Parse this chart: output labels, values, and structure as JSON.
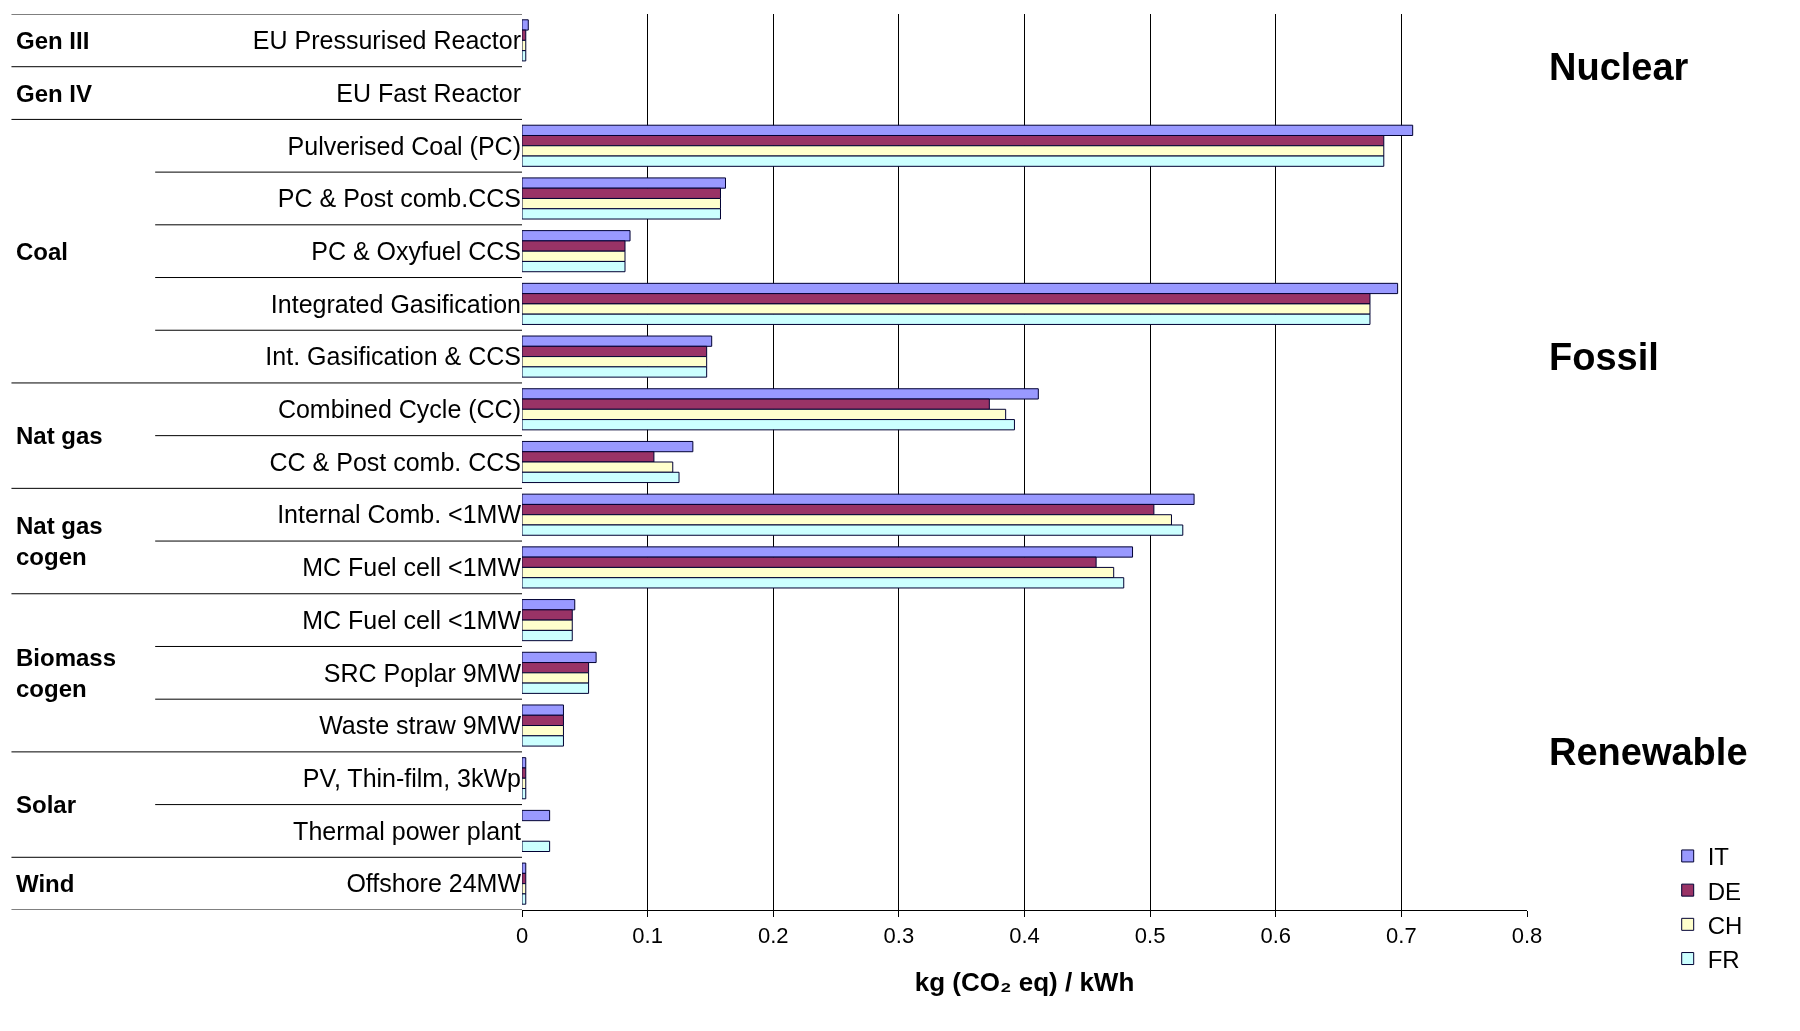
{
  "chart_data": {
    "type": "bar",
    "orientation": "horizontal",
    "xlabel": "kg (CO₂ eq) / kWh",
    "categories": [
      "EU Pressurised Reactor",
      "EU Fast Reactor",
      "Pulverised Coal (PC)",
      "PC & Post comb.CCS",
      "PC & Oxyfuel CCS",
      "Integrated Gasification",
      "Int. Gasification & CCS",
      "Combined Cycle (CC)",
      "CC & Post comb. CCS",
      "Internal Comb. <1MW",
      "MC Fuel cell <1MW",
      "MC Fuel cell <1MW",
      "SRC Poplar 9MW",
      "Waste straw 9MW",
      "PV, Thin-film, 3kWp",
      "Thermal power plant",
      "Offshore 24MW"
    ],
    "series": [
      {
        "name": "IT",
        "color": "#9999ff",
        "values": [
          0.005,
          null,
          0.709,
          0.162,
          0.086,
          0.697,
          0.151,
          0.411,
          0.136,
          0.535,
          0.486,
          0.042,
          0.059,
          0.033,
          0.003,
          0.022,
          0.003
        ]
      },
      {
        "name": "DE",
        "color": "#993366",
        "values": [
          0.003,
          null,
          0.686,
          0.158,
          0.082,
          0.675,
          0.147,
          0.372,
          0.105,
          0.503,
          0.457,
          0.04,
          0.053,
          0.033,
          0.003,
          null,
          0.003
        ]
      },
      {
        "name": "CH",
        "color": "#ffffcc",
        "values": [
          0.003,
          null,
          0.686,
          0.158,
          0.082,
          0.675,
          0.147,
          0.385,
          0.12,
          0.517,
          0.471,
          0.04,
          0.053,
          0.033,
          0.003,
          null,
          0.003
        ]
      },
      {
        "name": "FR",
        "color": "#ccffff",
        "values": [
          0.003,
          null,
          0.686,
          0.158,
          0.082,
          0.675,
          0.147,
          0.392,
          0.125,
          0.526,
          0.479,
          0.04,
          0.053,
          0.033,
          0.003,
          0.022,
          0.003
        ]
      }
    ],
    "xlim": [
      0,
      0.8
    ],
    "xticks": [
      0,
      0.1,
      0.2,
      0.3,
      0.4,
      0.5,
      0.6,
      0.7,
      0.8
    ],
    "grid": "x",
    "legend": "bottom right",
    "annotations": [
      "Gen III",
      "Gen IV",
      "Coal",
      "Nat gas",
      "Nat gas\ncogen",
      "Biomass\ncogen",
      "Solar",
      "Wind",
      "Nuclear",
      "Fossil",
      "Renewable"
    ]
  }
}
